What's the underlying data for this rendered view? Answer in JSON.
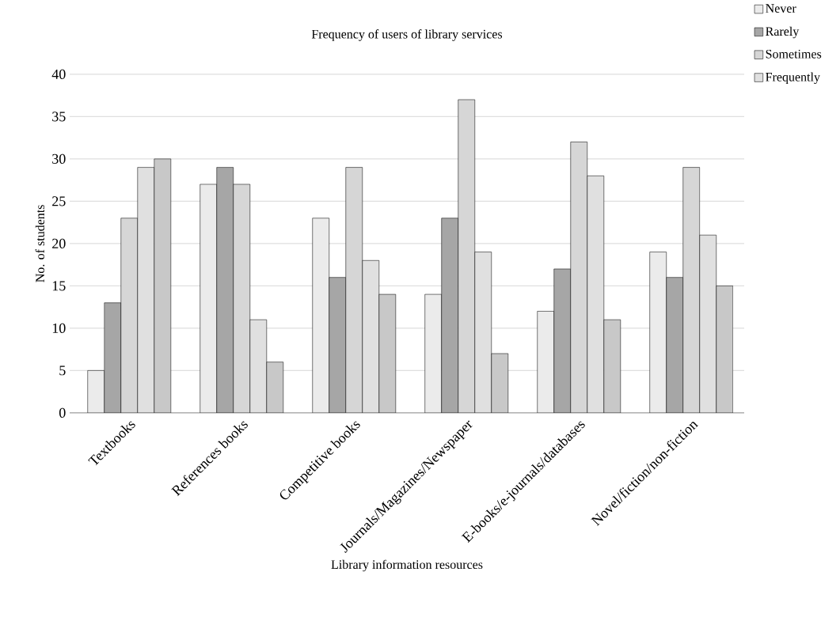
{
  "chart_data": {
    "type": "bar",
    "title": "Frequency of users of library services",
    "xlabel": "Library information resources",
    "ylabel": "No. of students",
    "categories": [
      "Textbooks",
      "References books",
      "Competitive books",
      "Journals/Magazines/Newspaper",
      "E-books/e-journals/databases",
      "Novel/fiction/non-fiction"
    ],
    "series": [
      {
        "name": "Never",
        "color": "#ebebeb",
        "values": [
          5,
          27,
          23,
          14,
          12,
          19
        ]
      },
      {
        "name": "Rarely",
        "color": "#a6a6a6",
        "values": [
          13,
          29,
          16,
          23,
          17,
          16
        ]
      },
      {
        "name": "Sometimes",
        "color": "#d6d6d6",
        "values": [
          23,
          27,
          29,
          37,
          32,
          29
        ]
      },
      {
        "name": "Frequently",
        "color": "#e0e0e0",
        "values": [
          29,
          11,
          18,
          19,
          28,
          21
        ]
      },
      {
        "color": "#c8c8c8",
        "values": [
          30,
          6,
          14,
          7,
          11,
          15
        ]
      }
    ],
    "ylim": [
      0,
      40
    ],
    "yticks": [
      0,
      5,
      10,
      15,
      20,
      25,
      30,
      35,
      40
    ],
    "grid": "y",
    "legend": "top right"
  }
}
